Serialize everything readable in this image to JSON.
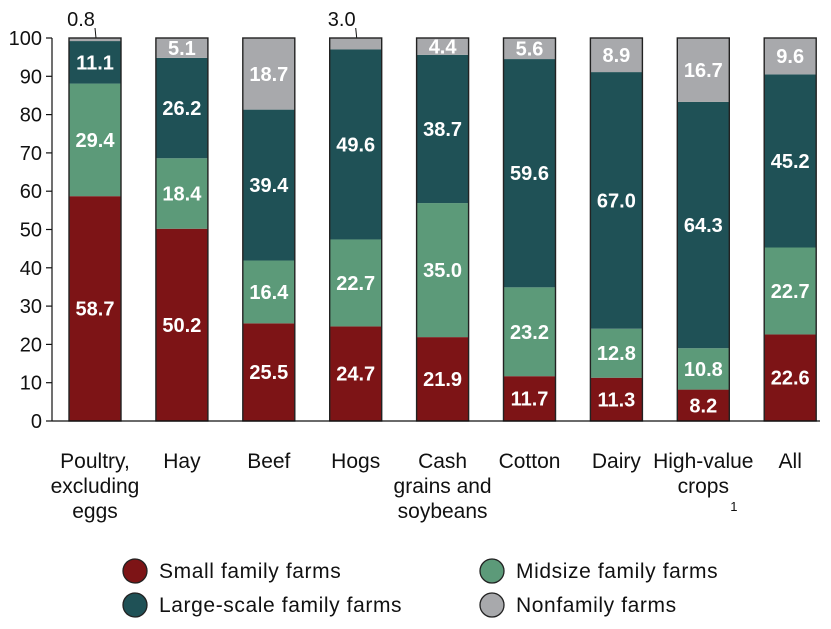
{
  "chart_data": {
    "type": "bar",
    "stacked": true,
    "title": "",
    "xlabel": "",
    "ylabel": "",
    "ylim": [
      0,
      100
    ],
    "yticks": [
      "0",
      "10",
      "20",
      "30",
      "40",
      "50",
      "60",
      "70",
      "80",
      "90",
      "100"
    ],
    "grid": false,
    "legend_position": "bottom",
    "categories": [
      [
        "Poultry,",
        "excluding",
        "eggs"
      ],
      [
        "Hay"
      ],
      [
        "Beef"
      ],
      [
        "Hogs"
      ],
      [
        "Cash",
        "grains and",
        "soybeans"
      ],
      [
        "Cotton"
      ],
      [
        "Dairy"
      ],
      [
        "High-value",
        "crops"
      ],
      [
        "All"
      ]
    ],
    "category_footnotes": [
      "",
      "",
      "",
      "",
      "",
      "",
      "",
      "1",
      ""
    ],
    "series": [
      {
        "name": "Small family farms",
        "color": "#7d1416",
        "values": [
          58.7,
          50.2,
          25.5,
          24.7,
          21.9,
          11.7,
          11.3,
          8.2,
          22.6
        ],
        "labels": [
          "58.7",
          "50.2",
          "25.5",
          "24.7",
          "21.9",
          "11.7",
          "11.3",
          "8.2",
          "22.6"
        ]
      },
      {
        "name": "Midsize family farms",
        "color": "#5c9a79",
        "values": [
          29.4,
          18.4,
          16.4,
          22.7,
          35.0,
          23.2,
          12.8,
          10.8,
          22.7
        ],
        "labels": [
          "29.4",
          "18.4",
          "16.4",
          "22.7",
          "35.0",
          "23.2",
          "12.8",
          "10.8",
          "22.7"
        ]
      },
      {
        "name": "Large-scale family farms",
        "color": "#1f5156",
        "values": [
          11.1,
          26.2,
          39.4,
          49.6,
          38.7,
          59.6,
          67.0,
          64.3,
          45.2
        ],
        "labels": [
          "11.1",
          "26.2",
          "39.4",
          "49.6",
          "38.7",
          "59.6",
          "67.0",
          "64.3",
          "45.2"
        ]
      },
      {
        "name": "Nonfamily farms",
        "color": "#a8a9ac",
        "values": [
          0.8,
          5.1,
          18.7,
          3.0,
          4.4,
          5.6,
          8.9,
          16.7,
          9.6
        ],
        "labels": [
          "0.8",
          "5.1",
          "18.7",
          "3.0",
          "4.4",
          "5.6",
          "8.9",
          "16.7",
          "9.6"
        ],
        "label_outside": [
          true,
          false,
          false,
          true,
          false,
          false,
          false,
          false,
          false
        ]
      }
    ],
    "legend_order": [
      0,
      1,
      2,
      3
    ]
  }
}
